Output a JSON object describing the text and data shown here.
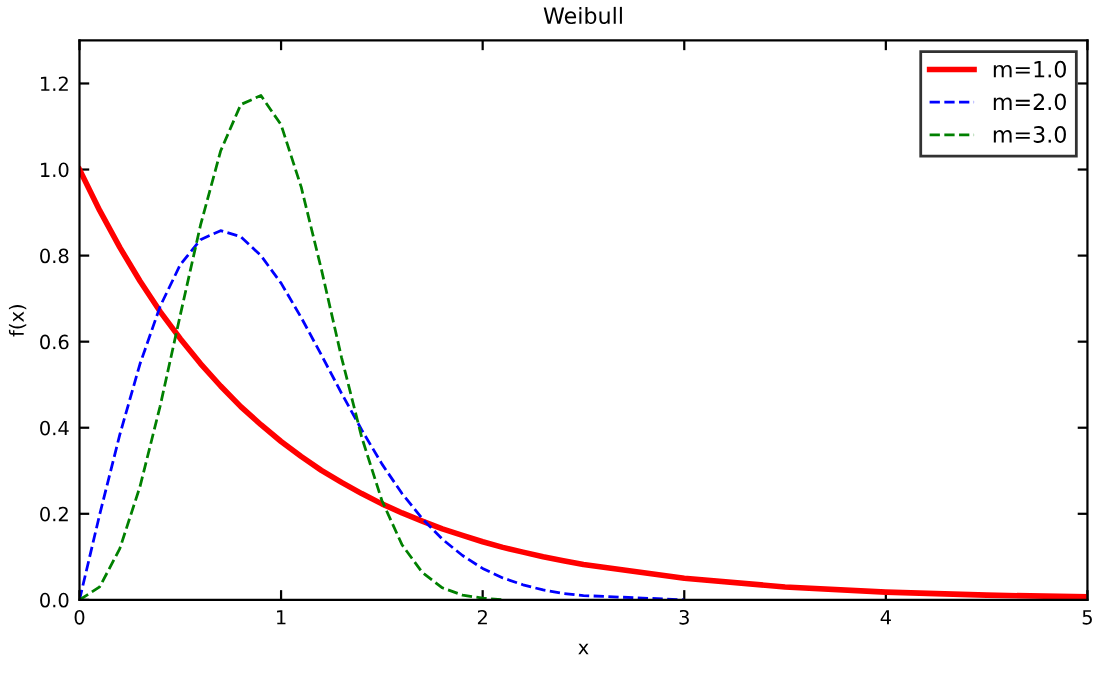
{
  "chart_data": {
    "type": "line",
    "title": "Weibull",
    "xlabel": "x",
    "ylabel": "f(x)",
    "xlim": [
      0,
      5
    ],
    "ylim": [
      0,
      1.3
    ],
    "xticks": [
      0,
      1,
      2,
      3,
      4,
      5
    ],
    "yticks": [
      {
        "value": 0,
        "label": "0.0"
      },
      {
        "value": 0.2,
        "label": "0.2"
      },
      {
        "value": 0.4,
        "label": "0.4"
      },
      {
        "value": 0.6,
        "label": "0.6"
      },
      {
        "value": 0.8,
        "label": "0.8"
      },
      {
        "value": 1.0,
        "label": "1.0"
      },
      {
        "value": 1.2,
        "label": "1.2"
      }
    ],
    "x": [
      0,
      0.1,
      0.2,
      0.3,
      0.4,
      0.5,
      0.6,
      0.7,
      0.8,
      0.9,
      1.0,
      1.1,
      1.2,
      1.3,
      1.4,
      1.5,
      1.6,
      1.7,
      1.8,
      1.9,
      2.0,
      2.1,
      2.2,
      2.3,
      2.4,
      2.5,
      3.0,
      3.5,
      4.0,
      4.5,
      5.0
    ],
    "grid": false,
    "legend": "top right",
    "marker": "none",
    "series": [
      {
        "name": "m=1.0",
        "color": "#ff0000",
        "line_style": "solid",
        "values": [
          1.0,
          0.905,
          0.819,
          0.741,
          0.67,
          0.607,
          0.549,
          0.497,
          0.449,
          0.407,
          0.368,
          0.333,
          0.301,
          0.273,
          0.247,
          0.223,
          0.202,
          0.183,
          0.165,
          0.15,
          0.135,
          0.122,
          0.111,
          0.1,
          0.091,
          0.082,
          0.05,
          0.03,
          0.018,
          0.011,
          0.007
        ]
      },
      {
        "name": "m=2.0",
        "color": "#0000ff",
        "line_style": "dashed",
        "values": [
          0,
          0.198,
          0.384,
          0.548,
          0.682,
          0.779,
          0.837,
          0.858,
          0.844,
          0.8,
          0.736,
          0.656,
          0.569,
          0.48,
          0.395,
          0.316,
          0.247,
          0.189,
          0.141,
          0.103,
          0.073,
          0.051,
          0.035,
          0.023,
          0.015,
          0.01,
          0,
          null,
          null,
          null,
          null
        ]
      },
      {
        "name": "m=3.0",
        "color": "#008000",
        "line_style": "dashed",
        "values": [
          0,
          0.03,
          0.119,
          0.263,
          0.45,
          0.662,
          0.87,
          1.043,
          1.151,
          1.172,
          1.104,
          0.959,
          0.768,
          0.563,
          0.378,
          0.231,
          0.128,
          0.064,
          0.028,
          0.011,
          0.004,
          0,
          null,
          null,
          null,
          null,
          null,
          null,
          null,
          null,
          null
        ]
      }
    ]
  }
}
